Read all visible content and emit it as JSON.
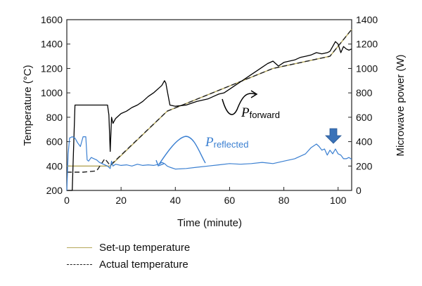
{
  "chart_data": {
    "type": "line",
    "xlabel": "Time (minute)",
    "ylabel_left": "Temperature (°C)",
    "ylabel_right": "Microwave power (W)",
    "xlim": [
      0,
      105
    ],
    "ylim_left": [
      200,
      1600
    ],
    "ylim_right": [
      0,
      1400
    ],
    "x_ticks": [
      "0",
      "20",
      "40",
      "60",
      "80",
      "100"
    ],
    "y_left_ticks": [
      "200",
      "400",
      "600",
      "800",
      "1000",
      "1200",
      "1400",
      "1600"
    ],
    "y_right_ticks": [
      "0",
      "200",
      "400",
      "600",
      "800",
      "1000",
      "1200",
      "1400"
    ],
    "grid": false,
    "legend_position": "bottom-left",
    "colors": {
      "setup": "#b5a75a",
      "actual": "#222222",
      "forward": "#000000",
      "reflected": "#3a7fd1",
      "marker": "#3a72b8"
    },
    "series": [
      {
        "name": "Set-up temperature",
        "axis": "left",
        "style": "solid",
        "x": [
          0,
          15,
          16,
          37,
          76,
          97,
          105
        ],
        "y": [
          400,
          400,
          400,
          850,
          1200,
          1300,
          1520
        ]
      },
      {
        "name": "Actual temperature",
        "axis": "left",
        "style": "dashed",
        "x": [
          0,
          6,
          11,
          14,
          16,
          37,
          76,
          97,
          105
        ],
        "y": [
          350,
          350,
          360,
          460,
          405,
          850,
          1200,
          1300,
          1520
        ]
      },
      {
        "axis": "right",
        "style": "solid",
        "x": [
          0,
          1,
          2,
          3,
          4,
          5,
          6,
          7,
          8,
          9,
          10,
          11,
          12,
          13,
          14,
          15,
          15.5,
          16,
          16.5,
          17,
          18,
          20,
          22,
          24,
          26,
          28,
          30,
          32,
          34,
          35,
          36,
          36.5,
          37,
          38,
          40,
          44,
          48,
          52,
          54,
          56,
          58,
          60,
          62,
          64,
          66,
          68,
          70,
          72,
          74,
          76,
          78,
          80,
          82,
          84,
          86,
          88,
          90,
          92,
          94,
          96,
          97,
          98,
          99,
          100,
          101,
          102,
          103,
          104,
          105
        ],
        "y": [
          0,
          0,
          0,
          700,
          700,
          700,
          700,
          700,
          700,
          700,
          700,
          700,
          700,
          700,
          700,
          700,
          620,
          320,
          600,
          550,
          590,
          630,
          650,
          680,
          700,
          730,
          770,
          800,
          840,
          860,
          900,
          880,
          820,
          700,
          690,
          700,
          730,
          750,
          770,
          790,
          800,
          830,
          860,
          890,
          920,
          950,
          980,
          1010,
          1040,
          1060,
          1020,
          1050,
          1060,
          1070,
          1090,
          1100,
          1110,
          1130,
          1120,
          1130,
          1140,
          1180,
          1220,
          1200,
          1130,
          1180,
          1160,
          1150,
          1160
        ]
      },
      {
        "axis": "right",
        "style": "solid",
        "x": [
          0,
          0.5,
          1,
          2,
          3,
          4,
          5,
          6,
          7,
          7.5,
          8,
          9,
          10,
          11,
          12,
          13,
          14,
          15,
          16,
          16.5,
          17,
          18,
          20,
          22,
          24,
          26,
          28,
          30,
          32,
          34,
          35,
          36,
          37,
          38,
          40,
          44,
          48,
          52,
          56,
          60,
          64,
          68,
          72,
          76,
          80,
          84,
          88,
          90,
          92,
          93,
          94,
          95,
          96,
          97,
          98,
          99,
          100,
          101,
          102,
          103,
          104,
          105
        ],
        "y": [
          0,
          300,
          430,
          440,
          430,
          390,
          360,
          440,
          440,
          250,
          240,
          270,
          260,
          250,
          230,
          220,
          210,
          200,
          180,
          240,
          200,
          215,
          205,
          210,
          200,
          215,
          205,
          210,
          205,
          215,
          230,
          220,
          200,
          190,
          175,
          180,
          190,
          200,
          210,
          220,
          215,
          220,
          230,
          220,
          240,
          260,
          300,
          350,
          380,
          360,
          330,
          340,
          290,
          330,
          300,
          340,
          300,
          290,
          260,
          260,
          270,
          255
        ]
      }
    ],
    "annotations": {
      "forward_main": "P",
      "forward_sub": "forward",
      "reflected_main": "P",
      "reflected_sub": "reflected",
      "marker": "down-arrow"
    },
    "legend": {
      "items": [
        {
          "label": "Set-up temperature",
          "style": "solid",
          "colorKey": "setup"
        },
        {
          "label": "Actual temperature",
          "style": "dashed",
          "colorKey": "actual"
        }
      ]
    }
  }
}
